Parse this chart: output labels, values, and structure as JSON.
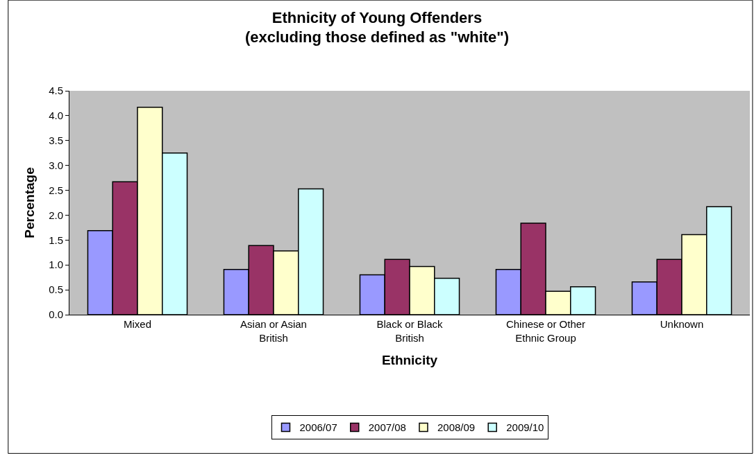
{
  "chart_data": {
    "type": "bar",
    "title": "Ethnicity of Young Offenders",
    "subtitle": "(excluding those defined as \"white\")",
    "xlabel": "Ethnicity",
    "ylabel": "Percentage",
    "categories": [
      "Mixed",
      "Asian or Asian British",
      "Black or Black British",
      "Chinese or Other Ethnic Group",
      "Unknown"
    ],
    "series": [
      {
        "name": "2006/07",
        "color": "#9999ff",
        "values": [
          1.69,
          0.91,
          0.8,
          0.91,
          0.66
        ]
      },
      {
        "name": "2007/08",
        "color": "#993366",
        "values": [
          2.67,
          1.39,
          1.11,
          1.84,
          1.11
        ]
      },
      {
        "name": "2008/09",
        "color": "#ffffcc",
        "values": [
          4.17,
          1.28,
          0.97,
          0.47,
          1.61
        ]
      },
      {
        "name": "2009/10",
        "color": "#ccffff",
        "values": [
          3.25,
          2.53,
          0.73,
          0.56,
          2.17
        ]
      }
    ],
    "ylim": [
      0,
      4.5
    ],
    "yticks": [
      {
        "value": 0,
        "label": "0.0"
      },
      0.5,
      {
        "value": 1,
        "label": "1.0"
      },
      1.5,
      {
        "value": 2,
        "label": "2.0"
      },
      2.5,
      {
        "value": 3,
        "label": "3.0"
      },
      3.5,
      {
        "value": 4,
        "label": "4.0"
      },
      4.5
    ],
    "grid": false,
    "legend": "bottom"
  }
}
